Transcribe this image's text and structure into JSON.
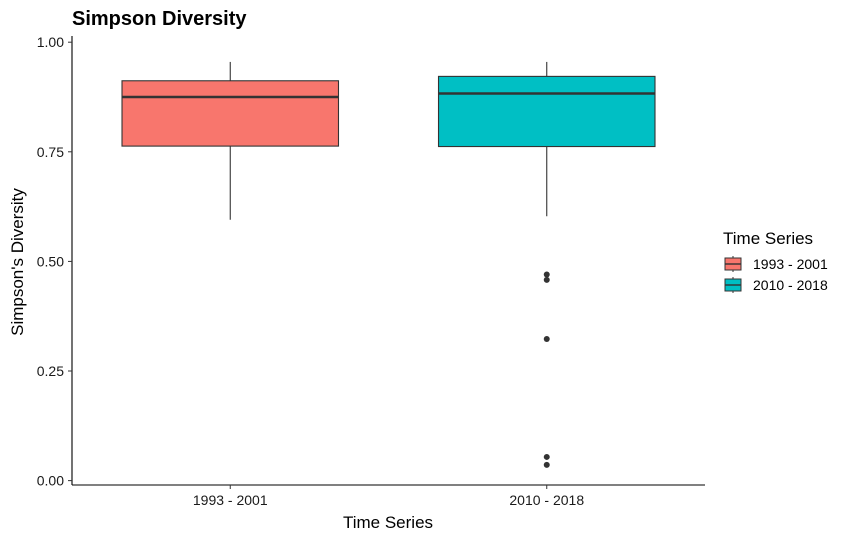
{
  "chart_data": {
    "type": "boxplot",
    "title": "Simpson Diversity",
    "xlabel": "Time Series",
    "ylabel": "Simpson's Diversity",
    "ylim": [
      -0.01,
      1.005
    ],
    "y_ticks": [
      0.0,
      0.25,
      0.5,
      0.75,
      1.0
    ],
    "y_tick_labels": [
      "0.00",
      "0.25",
      "0.50",
      "0.75",
      "1.00"
    ],
    "categories": [
      "1993 - 2001",
      "2010 - 2018"
    ],
    "legend": {
      "title": "Time Series",
      "position": "right",
      "entries": [
        "1993 - 2001",
        "2010 - 2018"
      ]
    },
    "series": [
      {
        "name": "1993 - 2001",
        "color": "#F8766D",
        "whisker_low": 0.595,
        "q1": 0.763,
        "median": 0.875,
        "q3": 0.912,
        "whisker_high": 0.955,
        "outliers": []
      },
      {
        "name": "2010 - 2018",
        "color": "#00BFC4",
        "whisker_low": 0.603,
        "q1": 0.762,
        "median": 0.883,
        "q3": 0.922,
        "whisker_high": 0.955,
        "outliers": [
          0.47,
          0.458,
          0.323,
          0.054,
          0.036
        ]
      }
    ],
    "grid": false
  }
}
